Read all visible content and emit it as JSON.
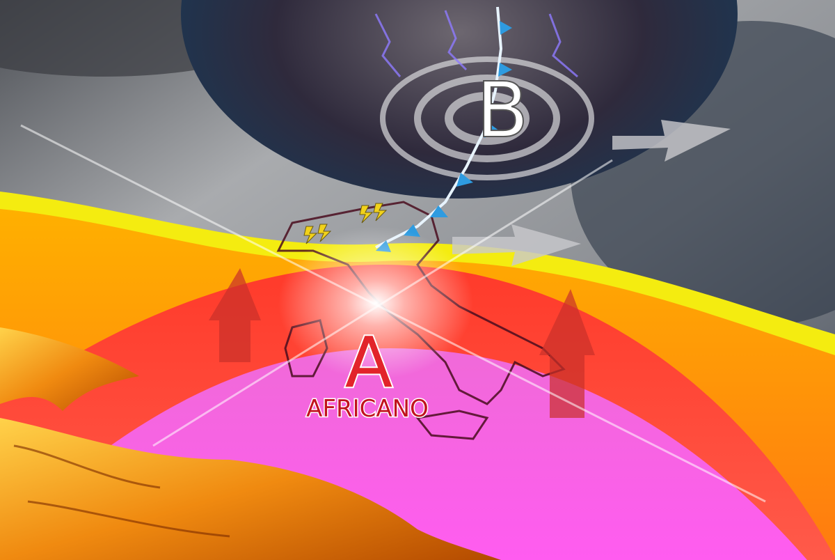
{
  "labels": {
    "low": "B",
    "high": "A",
    "high_name": "AFRICANO"
  }
}
